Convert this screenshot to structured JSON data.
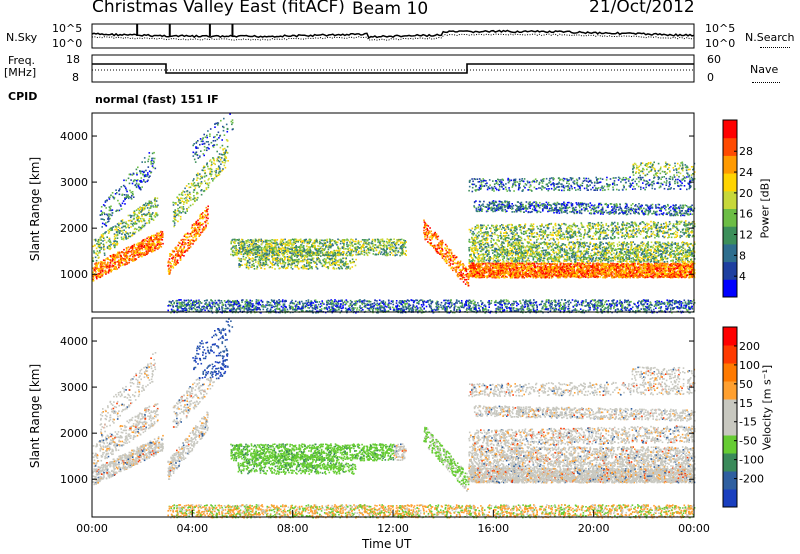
{
  "header": {
    "station_title": "Christmas Valley East (fitACF)",
    "beam_label": "Beam 10",
    "date": "21/Oct/2012"
  },
  "noise_panel": {
    "left_label": "N.Sky",
    "left_ticks": [
      "10^5",
      "10^0"
    ],
    "right_label": "N.Search",
    "right_ticks": [
      "10^5",
      "10^0"
    ]
  },
  "freq_panel": {
    "left_label_line1": "Freq.",
    "left_label_line2": "[MHz]",
    "left_ticks": [
      "18",
      "8"
    ],
    "right_label": "Nave",
    "right_ticks": [
      "60",
      "0"
    ],
    "cpid_label": "CPID",
    "mode_text": "normal (fast) 151 IF"
  },
  "chart_data": [
    {
      "type": "heatmap",
      "name": "power",
      "ylabel": "Slant Range [km]",
      "yticks": [
        1000,
        2000,
        3000,
        4000
      ],
      "ylim": [
        180,
        4500
      ],
      "xlim_hours": [
        0,
        24
      ],
      "colorbar": {
        "label": "Power [dB]",
        "ticks": [
          "4",
          "8",
          "12",
          "16",
          "20",
          "24",
          "28"
        ],
        "colors": [
          "#0000ff",
          "#1e3fa0",
          "#2e6e8e",
          "#3c8f5a",
          "#6cbd45",
          "#c7d83a",
          "#ffd400",
          "#ff9a00",
          "#ff4a00",
          "#ff0000"
        ]
      }
    },
    {
      "type": "heatmap",
      "name": "velocity",
      "ylabel": "Slant Range [km]",
      "yticks": [
        1000,
        2000,
        3000,
        4000
      ],
      "ylim": [
        180,
        4500
      ],
      "xlim_hours": [
        0,
        24
      ],
      "xticks": [
        "00:00",
        "04:00",
        "08:00",
        "12:00",
        "16:00",
        "20:00",
        "00:00"
      ],
      "xlabel": "Time UT",
      "colorbar": {
        "label": "Velocity [m s⁻¹]",
        "ticks": [
          "200",
          "100",
          "50",
          "15",
          "-15",
          "-50",
          "-100",
          "-200"
        ],
        "colors": [
          "#1a3fbf",
          "#2f5fa0",
          "#3a8a5a",
          "#66cc33",
          "#c8c8c0",
          "#c8c8c0",
          "#ffa030",
          "#ff7a00",
          "#ff3a00",
          "#ff0000"
        ]
      }
    }
  ]
}
